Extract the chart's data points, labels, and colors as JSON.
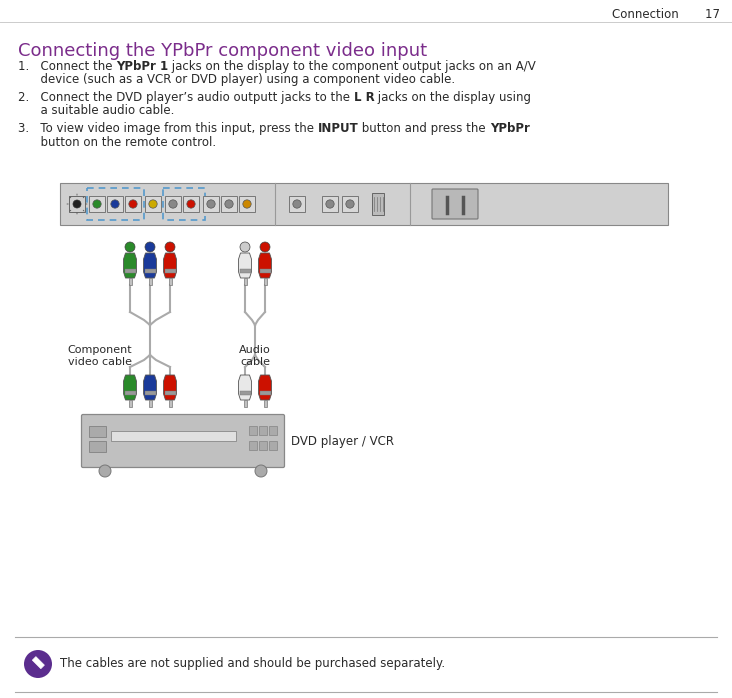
{
  "title_text": "Connecting the YPbPr component video input",
  "title_color": "#7B2D8B",
  "header_right": "Connection       17",
  "body_line1a": "1.   Connect the ",
  "body_line1b": "YPbPr 1",
  "body_line1c": " jacks on the display to the component output jacks on an A/V",
  "body_line1d": "      device (such as a VCR or DVD player) using a component video cable.",
  "body_line2a": "2.   Connect the DVD player’s audio outputt jacks to the ",
  "body_line2b": "L R",
  "body_line2c": " jacks on the display using",
  "body_line2d": "      a suitable audio cable.",
  "body_line3a": "3.   To view video image from this input, press the ",
  "body_line3b": "INPUT",
  "body_line3c": " button and press the ",
  "body_line3d": "YPbPr",
  "body_line3e": "",
  "body_line3f": "      button on the remote control.",
  "note_text": "The cables are not supplied and should be purchased separately.",
  "label_component": "Component\nvideo cable",
  "label_audio": "Audio\ncable",
  "label_dvd": "DVD player / VCR",
  "bg_color": "#ffffff",
  "text_color": "#2a2a2a",
  "title_fontsize": 13,
  "body_fontsize": 8.5,
  "connector_bar_color": "#d0d0d0",
  "connector_bar_border": "#999999",
  "note_icon_color": "#5B2D8E",
  "green_color": "#2a8a2a",
  "blue_color": "#1a3a9a",
  "red_color": "#cc1100",
  "cable_color": "#aaaaaa",
  "dvd_body_color": "#c0c0c0"
}
